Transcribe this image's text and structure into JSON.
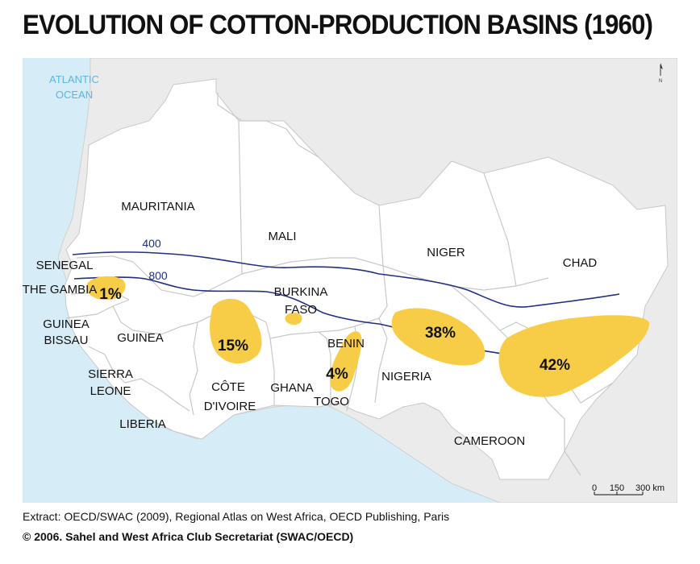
{
  "title": "EVOLUTION OF COTTON-PRODUCTION BASINS (1960)",
  "ocean": {
    "line1": "ATLANTIC",
    "line2": "OCEAN"
  },
  "countries": {
    "mauritania": "MAURITANIA",
    "mali": "MALI",
    "niger": "NIGER",
    "chad": "CHAD",
    "senegal": "SENEGAL",
    "gambia": "THE GAMBIA",
    "guinea_bissau_1": "GUINEA",
    "guinea_bissau_2": "BISSAU",
    "guinea": "GUINEA",
    "sierra_leone_1": "SIERRA",
    "sierra_leone_2": "LEONE",
    "liberia": "LIBERIA",
    "cote_divoire_1": "CÔTE",
    "cote_divoire_2": "D'IVOIRE",
    "burkina_1": "BURKINA",
    "burkina_2": "FASO",
    "ghana": "GHANA",
    "togo": "TOGO",
    "benin": "BENIN",
    "nigeria": "NIGERIA",
    "cameroon": "CAMEROON"
  },
  "isohyets": [
    {
      "label": "400"
    },
    {
      "label": "800"
    }
  ],
  "basins": [
    {
      "label": "1%",
      "value": 1
    },
    {
      "label": "15%",
      "value": 15
    },
    {
      "label": "4%",
      "value": 4
    },
    {
      "label": "38%",
      "value": 38
    },
    {
      "label": "42%",
      "value": 42
    }
  ],
  "scale": {
    "zero": "0",
    "mid": "150",
    "end": "300 km"
  },
  "north": "N",
  "colors": {
    "ocean": "#d6ecf7",
    "other_land": "#ebebeb",
    "study_land": "#ffffff",
    "border": "#c8c8c8",
    "basin": "#f7cd48",
    "isohyet": "#1f2f86",
    "ocean_label": "#5bb6dd"
  },
  "source": "Extract: OECD/SWAC (2009), Regional Atlas on West Africa, OECD Publishing, Paris",
  "copyright": "© 2006. Sahel and West Africa Club Secretariat (SWAC/OECD)"
}
